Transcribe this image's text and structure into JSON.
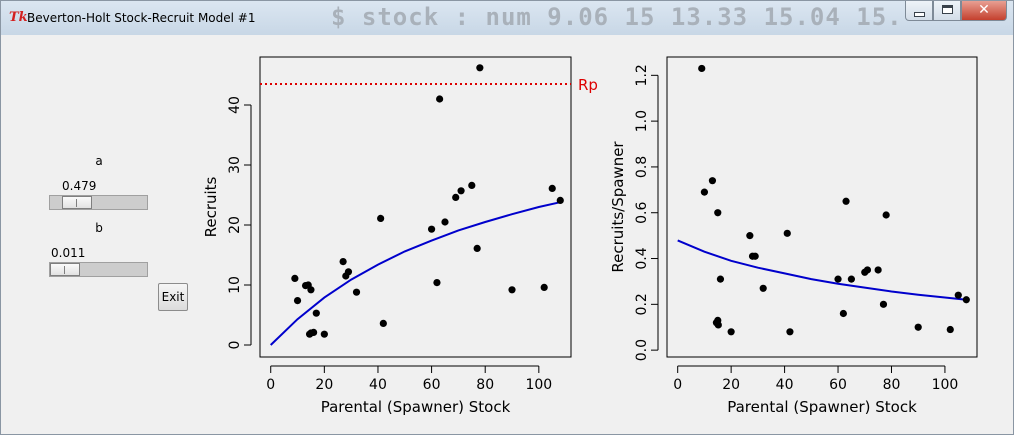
{
  "window": {
    "title": "Beverton-Holt Stock-Recruit Model #1",
    "background_text": "$ stock   : num  9.06 15 13.33 15.04 15.",
    "close_glyph": "✕"
  },
  "controls": {
    "a": {
      "label": "a",
      "value": "0.479",
      "fraction": 0.18
    },
    "b": {
      "label": "b",
      "value": "0.011",
      "fraction": 0.0
    },
    "exit_label": "Exit"
  },
  "colors": {
    "points": "#000000",
    "curve": "#0000cc",
    "reference": "#dd0000",
    "plot_bg": "#f0f0f0"
  },
  "chart_data": [
    {
      "type": "scatter",
      "title": "",
      "xlabel": "Parental (Spawner) Stock",
      "ylabel": "Recruits",
      "xlim": [
        -4,
        112
      ],
      "ylim": [
        -2,
        48
      ],
      "xticks": [
        0,
        20,
        40,
        60,
        80,
        100
      ],
      "yticks": [
        0,
        10,
        20,
        30,
        40
      ],
      "points": [
        [
          9,
          11.1
        ],
        [
          10,
          7.4
        ],
        [
          13,
          9.9
        ],
        [
          14,
          10
        ],
        [
          15,
          9.2
        ],
        [
          14.5,
          1.8
        ],
        [
          15,
          2
        ],
        [
          16,
          2.1
        ],
        [
          17,
          5.3
        ],
        [
          20,
          1.8
        ],
        [
          27,
          13.9
        ],
        [
          28,
          11.5
        ],
        [
          29,
          12.2
        ],
        [
          32,
          8.8
        ],
        [
          41,
          21.1
        ],
        [
          42,
          3.6
        ],
        [
          60,
          19.3
        ],
        [
          62,
          10.4
        ],
        [
          63,
          41
        ],
        [
          65,
          20.5
        ],
        [
          69,
          24.6
        ],
        [
          71,
          25.7
        ],
        [
          75,
          26.6
        ],
        [
          77,
          16.1
        ],
        [
          78,
          46.2
        ],
        [
          90,
          9.2
        ],
        [
          102,
          9.6
        ],
        [
          105,
          26.1
        ],
        [
          108,
          24.1
        ]
      ],
      "curve": {
        "name": "Beverton-Holt fit",
        "x": [
          0,
          10,
          20,
          30,
          40,
          50,
          60,
          70,
          80,
          90,
          100,
          108
        ],
        "y": [
          0,
          4.3,
          7.9,
          10.9,
          13.4,
          15.6,
          17.4,
          19.1,
          20.5,
          21.8,
          23.0,
          23.8
        ]
      },
      "reference_line": {
        "y": 43.5,
        "label": "Rp"
      }
    },
    {
      "type": "scatter",
      "title": "",
      "xlabel": "Parental (Spawner) Stock",
      "ylabel": "Recruits/Spawner",
      "xlim": [
        -4,
        112
      ],
      "ylim": [
        -0.03,
        1.28
      ],
      "xticks": [
        0,
        20,
        40,
        60,
        80,
        100
      ],
      "yticks": [
        0.0,
        0.2,
        0.4,
        0.6,
        0.8,
        1.0,
        1.2
      ],
      "ytick_labels": [
        "0.0",
        "0.2",
        "0.4",
        "0.6",
        "0.8",
        "1.0",
        "1.2"
      ],
      "points": [
        [
          9,
          1.23
        ],
        [
          10,
          0.69
        ],
        [
          13,
          0.74
        ],
        [
          15,
          0.6
        ],
        [
          14.5,
          0.12
        ],
        [
          15,
          0.13
        ],
        [
          15.2,
          0.11
        ],
        [
          16,
          0.31
        ],
        [
          20,
          0.08
        ],
        [
          27,
          0.5
        ],
        [
          28,
          0.41
        ],
        [
          29,
          0.41
        ],
        [
          32,
          0.27
        ],
        [
          41,
          0.51
        ],
        [
          42,
          0.08
        ],
        [
          60,
          0.31
        ],
        [
          62,
          0.16
        ],
        [
          63,
          0.65
        ],
        [
          65,
          0.31
        ],
        [
          70,
          0.34
        ],
        [
          71,
          0.35
        ],
        [
          75,
          0.35
        ],
        [
          77,
          0.2
        ],
        [
          78,
          0.59
        ],
        [
          90,
          0.1
        ],
        [
          102,
          0.09
        ],
        [
          105,
          0.24
        ],
        [
          108,
          0.22
        ]
      ],
      "curve": {
        "name": "Beverton-Holt fit",
        "x": [
          0,
          10,
          20,
          30,
          40,
          50,
          60,
          70,
          80,
          90,
          100,
          108
        ],
        "y": [
          0.479,
          0.43,
          0.39,
          0.36,
          0.335,
          0.31,
          0.29,
          0.273,
          0.256,
          0.242,
          0.23,
          0.22
        ]
      }
    }
  ]
}
